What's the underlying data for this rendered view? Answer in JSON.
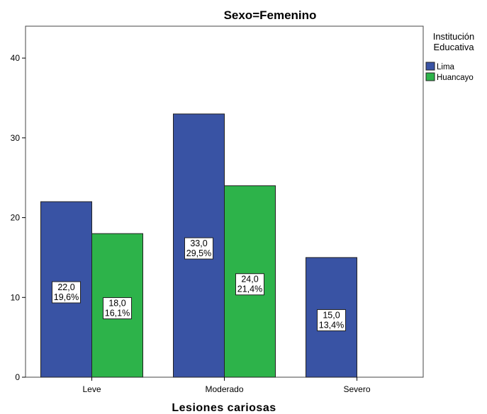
{
  "chart_data": {
    "type": "bar",
    "title": "Sexo=Femenino",
    "xlabel": "Lesiones cariosas",
    "ylabel": "",
    "ylim": [
      0,
      44
    ],
    "yticks": [
      0,
      10,
      20,
      30,
      40
    ],
    "categories": [
      "Leve",
      "Moderado",
      "Severo"
    ],
    "legend": {
      "title_lines": [
        "Institución",
        "Educativa"
      ],
      "placement": "right"
    },
    "series": [
      {
        "name": "Lima",
        "color": "#3953a4",
        "values": [
          22,
          33,
          15
        ],
        "labels": [
          [
            "22,0",
            "19,6%"
          ],
          [
            "33,0",
            "29,5%"
          ],
          [
            "15,0",
            "13,4%"
          ]
        ]
      },
      {
        "name": "Huancayo",
        "color": "#2db34a",
        "values": [
          18,
          24,
          null
        ],
        "labels": [
          [
            "18,0",
            "16,1%"
          ],
          [
            "24,0",
            "21,4%"
          ],
          null
        ]
      }
    ],
    "grid": false
  }
}
